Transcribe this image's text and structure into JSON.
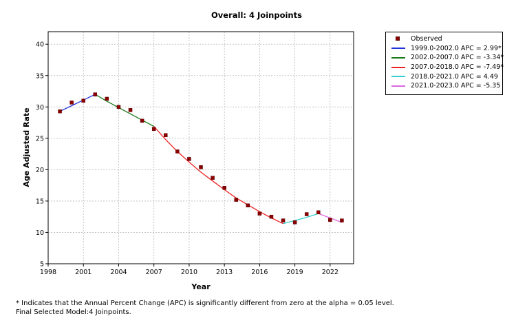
{
  "chart_data": {
    "type": "line",
    "title": "Overall: 4 Joinpoints",
    "xlabel": "Year",
    "ylabel": "Age Adjusted Rate",
    "xlim": [
      1998,
      2024
    ],
    "ylim": [
      5,
      42
    ],
    "xticks": [
      1998,
      2001,
      2004,
      2007,
      2010,
      2013,
      2016,
      2019,
      2022
    ],
    "yticks": [
      5,
      10,
      15,
      20,
      25,
      30,
      35,
      40
    ],
    "grid": true,
    "legend_position": "top-right outside",
    "observed": {
      "name": "Observed",
      "color": "#8b0000",
      "x": [
        1999,
        2000,
        2001,
        2002,
        2003,
        2004,
        2005,
        2006,
        2007,
        2008,
        2009,
        2010,
        2011,
        2012,
        2013,
        2014,
        2015,
        2016,
        2017,
        2018,
        2019,
        2020,
        2021,
        2022,
        2023
      ],
      "y": [
        29.3,
        30.7,
        31.0,
        32.0,
        31.3,
        30.0,
        29.5,
        27.8,
        26.5,
        25.5,
        22.9,
        21.7,
        20.4,
        18.7,
        17.1,
        15.2,
        14.3,
        13.0,
        12.5,
        11.9,
        11.6,
        12.9,
        13.2,
        12.0,
        11.9
      ]
    },
    "series": [
      {
        "name": "1999.0-2002.0 APC =  2.99*",
        "color": "#2233dd",
        "x": [
          1999,
          2000,
          2001,
          2002
        ],
        "y": [
          29.3,
          30.2,
          31.1,
          32.0
        ]
      },
      {
        "name": "2002.0-2007.0 APC = -3.34*",
        "color": "#1a7a1a",
        "x": [
          2002,
          2003,
          2004,
          2005,
          2006,
          2007
        ],
        "y": [
          32.0,
          30.9,
          29.9,
          28.9,
          27.9,
          26.9
        ]
      },
      {
        "name": "2007.0-2018.0 APC = -7.49*",
        "color": "#ee2222",
        "x": [
          2007,
          2008,
          2009,
          2010,
          2011,
          2012,
          2013,
          2014,
          2015,
          2016,
          2017,
          2018
        ],
        "y": [
          26.9,
          24.8,
          22.9,
          21.2,
          19.6,
          18.2,
          16.8,
          15.5,
          14.4,
          13.3,
          12.3,
          11.4
        ]
      },
      {
        "name": "2018.0-2021.0 APC =  4.49",
        "color": "#33cccc",
        "x": [
          2018,
          2019,
          2020,
          2021
        ],
        "y": [
          11.4,
          11.9,
          12.4,
          13.0
        ]
      },
      {
        "name": "2021.0-2023.0 APC = -5.35",
        "color": "#dd66dd",
        "x": [
          2021,
          2022,
          2023
        ],
        "y": [
          13.0,
          12.3,
          11.6
        ]
      }
    ]
  },
  "footnotes": [
    "* Indicates that the Annual Percent Change (APC) is significantly different from zero at the alpha = 0.05 level.",
    "Final Selected Model:4 Joinpoints."
  ]
}
